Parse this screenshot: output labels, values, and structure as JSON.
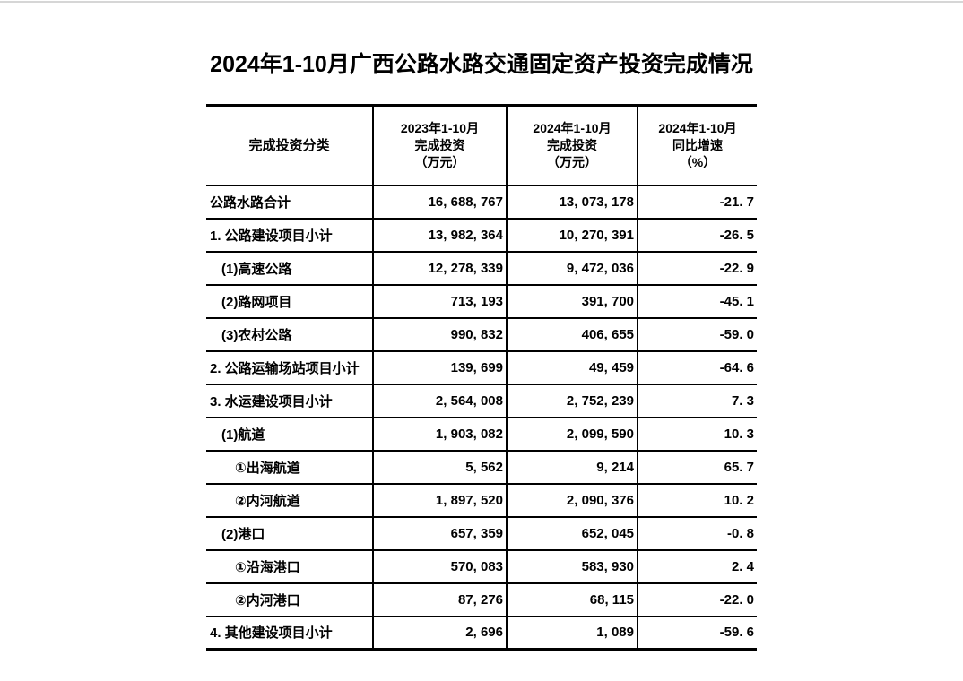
{
  "page": {
    "title": "2024年1-10月广西公路水路交通固定资产投资完成情况"
  },
  "table": {
    "header": {
      "category": "完成投资分类",
      "col2023": {
        "line1": "2023年1-10月",
        "line2": "完成投资",
        "line3": "（万元）"
      },
      "col2024": {
        "line1": "2024年1-10月",
        "line2": "完成投资",
        "line3": "（万元）"
      },
      "growth": {
        "line1": "2024年1-10月",
        "line2": "同比增速",
        "line3": "（%）"
      }
    },
    "rows": [
      {
        "label": "公路水路合计",
        "indent": 0,
        "v2023": "16, 688, 767",
        "v2024": "13, 073, 178",
        "growth": "-21. 7"
      },
      {
        "label": "1. 公路建设项目小计",
        "indent": 0,
        "v2023": "13, 982, 364",
        "v2024": "10, 270, 391",
        "growth": "-26. 5"
      },
      {
        "label": "(1)高速公路",
        "indent": 1,
        "v2023": "12, 278, 339",
        "v2024": "9, 472, 036",
        "growth": "-22. 9"
      },
      {
        "label": "(2)路网项目",
        "indent": 1,
        "v2023": "713, 193",
        "v2024": "391, 700",
        "growth": "-45. 1"
      },
      {
        "label": "(3)农村公路",
        "indent": 1,
        "v2023": "990, 832",
        "v2024": "406, 655",
        "growth": "-59. 0"
      },
      {
        "label": "2. 公路运输场站项目小计",
        "indent": 0,
        "v2023": "139, 699",
        "v2024": "49, 459",
        "growth": "-64. 6"
      },
      {
        "label": "3. 水运建设项目小计",
        "indent": 0,
        "v2023": "2, 564, 008",
        "v2024": "2, 752, 239",
        "growth": "7. 3"
      },
      {
        "label": "(1)航道",
        "indent": 1,
        "v2023": "1, 903, 082",
        "v2024": "2, 099, 590",
        "growth": "10. 3"
      },
      {
        "label": "①出海航道",
        "indent": 2,
        "v2023": "5, 562",
        "v2024": "9, 214",
        "growth": "65. 7"
      },
      {
        "label": "②内河航道",
        "indent": 2,
        "v2023": "1, 897, 520",
        "v2024": "2, 090, 376",
        "growth": "10. 2"
      },
      {
        "label": "(2)港口",
        "indent": 1,
        "v2023": "657, 359",
        "v2024": "652, 045",
        "growth": "-0. 8"
      },
      {
        "label": "①沿海港口",
        "indent": 2,
        "v2023": "570, 083",
        "v2024": "583, 930",
        "growth": "2. 4"
      },
      {
        "label": "②内河港口",
        "indent": 2,
        "v2023": "87, 276",
        "v2024": "68, 115",
        "growth": "-22. 0"
      },
      {
        "label": "4. 其他建设项目小计",
        "indent": 0,
        "v2023": "2, 696",
        "v2024": "1, 089",
        "growth": "-59. 6"
      }
    ]
  }
}
